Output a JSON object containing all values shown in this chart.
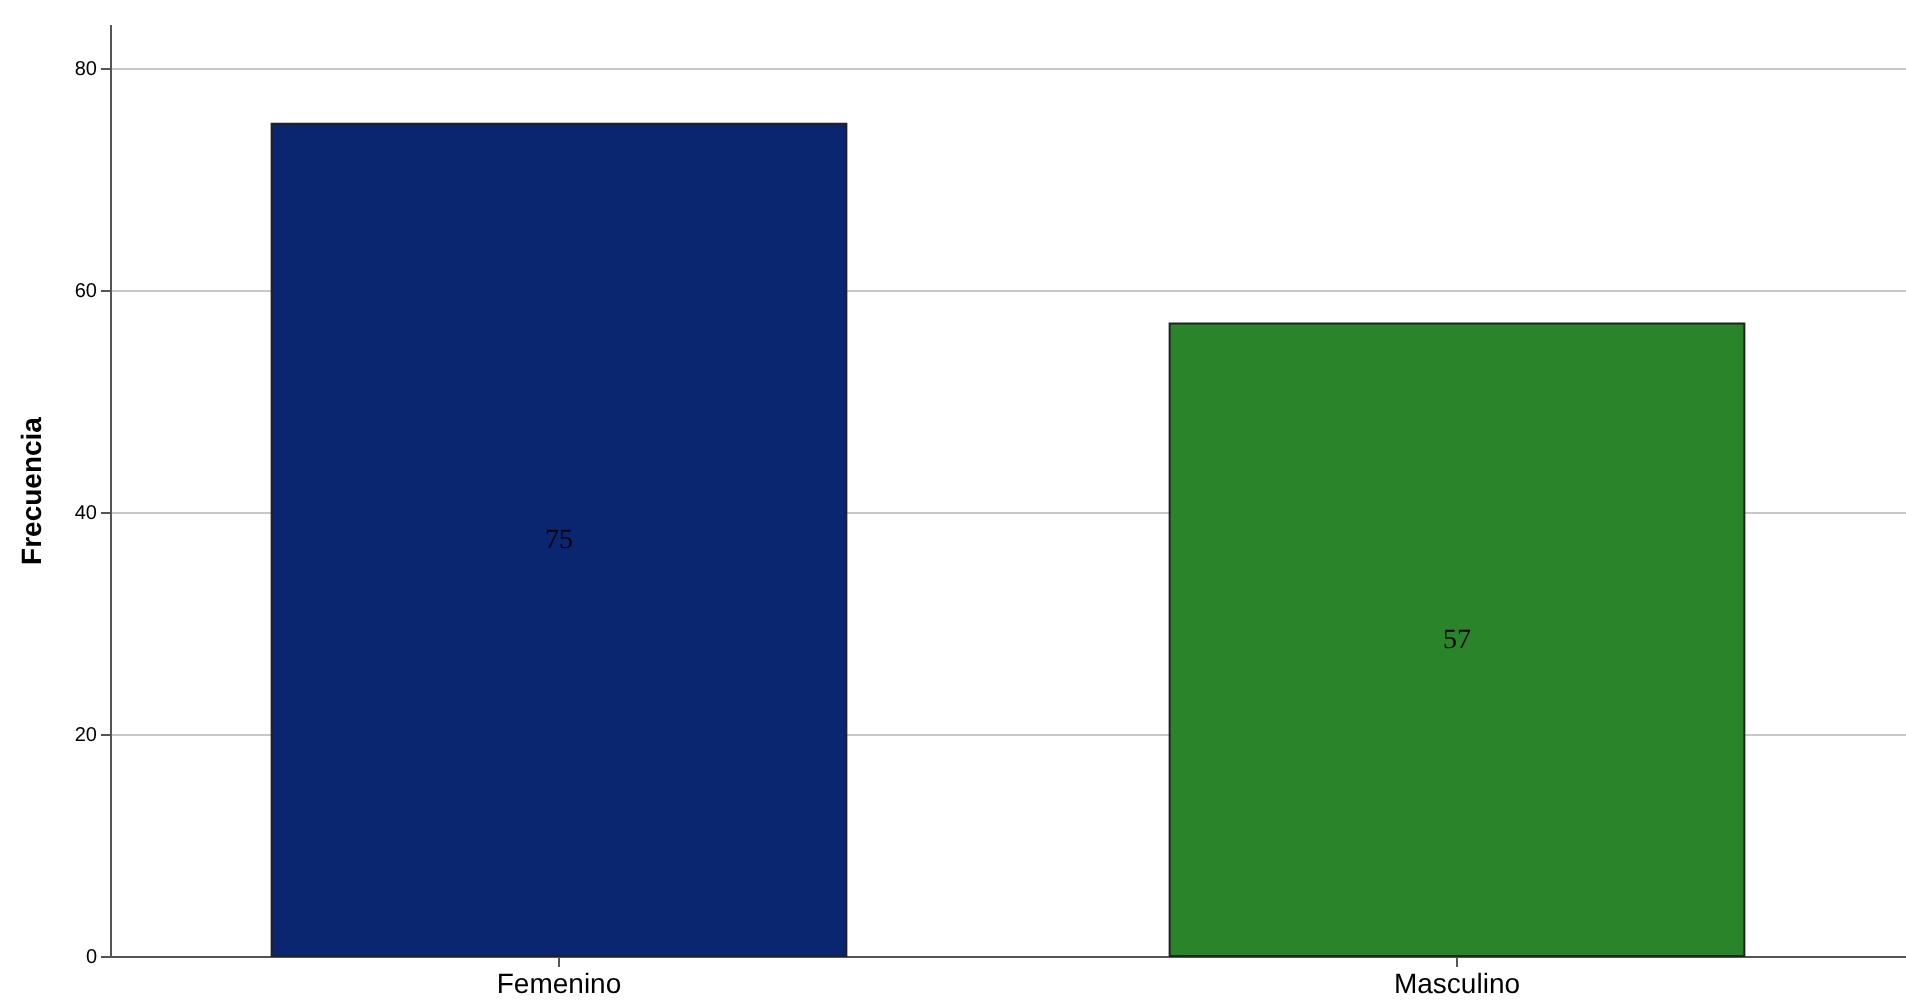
{
  "chart_data": {
    "type": "bar",
    "ylabel": "Frecuencia",
    "categories": [
      "Femenino",
      "Masculino"
    ],
    "values": [
      75,
      57
    ],
    "colors": [
      "#0b2670",
      "#2a852a"
    ],
    "ylim": [
      0,
      84
    ],
    "yticks": [
      0,
      20,
      40,
      60,
      80
    ],
    "grid": "y",
    "data_labels": true
  }
}
